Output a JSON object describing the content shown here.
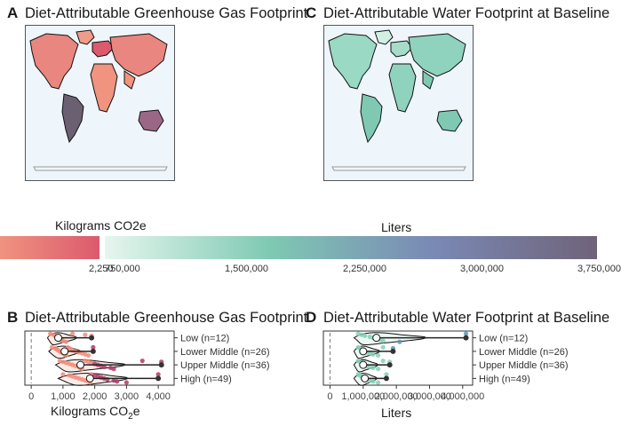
{
  "panels": [
    {
      "tag": "A",
      "title": "Diet-Attributable Greenhouse Gas Footprint"
    },
    {
      "tag": "C",
      "title": "Diet-Attributable Water Footprint at Baseline"
    },
    {
      "tag": "B",
      "title": "Diet-Attributable Greenhouse Gas Footprint"
    },
    {
      "tag": "D",
      "title": "Diet-Attributable Water Footprint at Baseline"
    }
  ],
  "colors": {
    "ghg_low": "#f0937f",
    "ghg_high": "#db5a6e",
    "water_low": "#e6f6ee",
    "water_mid": "#7fc9b3",
    "water_high": "#7a89b5",
    "water_max": "#6f6379",
    "ocean": "#eef6fc"
  },
  "legends": {
    "ghg": {
      "title": "Kilograms CO2e",
      "ticks": [
        "2,250"
      ]
    },
    "water": {
      "title": "Liters",
      "ticks": [
        "750,000",
        "1,500,000",
        "2,250,000",
        "3,000,000",
        "3,750,000"
      ]
    }
  },
  "chart_data": [
    {
      "type": "violin",
      "panel": "B",
      "xlabel_base": "Kilograms CO",
      "xlabel_sub": "2",
      "xlabel_end": "e",
      "xlim": [
        -200,
        4500
      ],
      "xticks": [
        0,
        1000,
        2000,
        3000,
        4000
      ],
      "xtick_labels": [
        "0",
        "1,000",
        "2,000",
        "3,000",
        "4,000"
      ],
      "categories": [
        "Low (n=12)",
        "Lower Middle (n=26)",
        "Upper Middle (n=36)",
        "High (n=49)"
      ],
      "reference_line": 0,
      "medians": [
        850,
        1050,
        1550,
        1850
      ],
      "whisker_ends": [
        1900,
        1950,
        4100,
        4000
      ],
      "points": [
        [
          600,
          700,
          750,
          800,
          850,
          900,
          950,
          1000,
          1100,
          1300,
          1700,
          1900
        ],
        [
          650,
          750,
          800,
          850,
          900,
          950,
          1000,
          1050,
          1100,
          1150,
          1200,
          1250,
          1300,
          1400,
          1500,
          1600,
          1700,
          1800,
          1950
        ],
        [
          900,
          1000,
          1100,
          1200,
          1300,
          1400,
          1500,
          1550,
          1600,
          1700,
          1800,
          1900,
          2000,
          2100,
          2200,
          2300,
          2500,
          2600,
          3500,
          4100
        ],
        [
          1000,
          1200,
          1300,
          1400,
          1500,
          1600,
          1700,
          1800,
          1850,
          1900,
          2000,
          2100,
          2200,
          2300,
          2400,
          2600,
          2700,
          3000,
          4000
        ]
      ]
    },
    {
      "type": "violin",
      "panel": "D",
      "xlabel": "Liters",
      "xlim": [
        -200000,
        4300000
      ],
      "xticks": [
        0,
        1000000,
        2000000,
        3000000,
        4000000
      ],
      "xtick_labels": [
        "0",
        "1,000,000",
        "2,000,000",
        "3,000,000",
        "4,000,000"
      ],
      "categories": [
        "Low (n=12)",
        "Lower Middle (n=26)",
        "Upper Middle (n=36)",
        "High (n=49)"
      ],
      "reference_line": 0,
      "medians": [
        1400000,
        1000000,
        1000000,
        1050000
      ],
      "whisker_ends": [
        4100000,
        1900000,
        1800000,
        1700000
      ],
      "points": [
        [
          850000,
          950000,
          1050000,
          1200000,
          1300000,
          1400000,
          1500000,
          1600000,
          2100000,
          4100000
        ],
        [
          850000,
          900000,
          950000,
          1000000,
          1050000,
          1100000,
          1200000,
          1300000,
          1450000,
          1600000,
          1900000
        ],
        [
          850000,
          900000,
          950000,
          1000000,
          1050000,
          1100000,
          1200000,
          1300000,
          1450000,
          1600000,
          1800000
        ],
        [
          850000,
          900000,
          950000,
          1000000,
          1050000,
          1100000,
          1200000,
          1300000,
          1450000,
          1700000
        ]
      ]
    }
  ]
}
